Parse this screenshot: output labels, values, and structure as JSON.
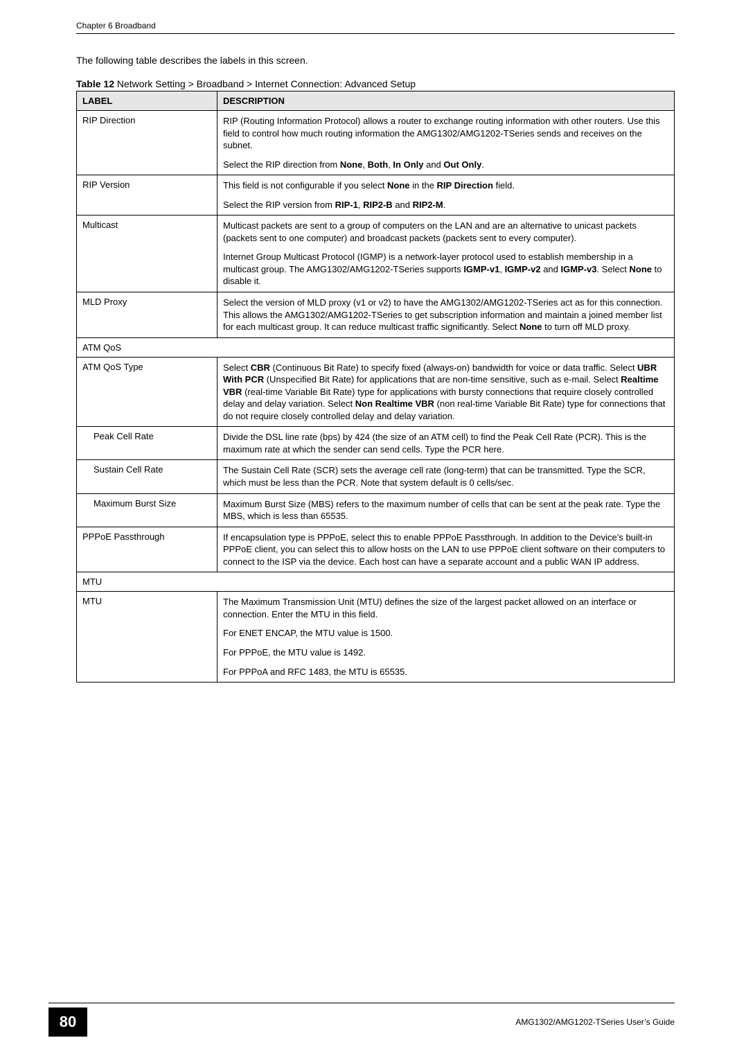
{
  "header": {
    "chapter": "Chapter 6 Broadband"
  },
  "intro": "The following table describes the labels in this screen.",
  "tableCaption": {
    "prefix": "Table 12",
    "title": "   Network Setting > Broadband > Internet Connection: Advanced Setup"
  },
  "columns": {
    "label": "LABEL",
    "description": "DESCRIPTION"
  },
  "rows": {
    "ripDirection": {
      "label": "RIP Direction",
      "p1": "RIP (Routing Information Protocol) allows a router to exchange routing information with other routers. Use this field to control how much routing information the AMG1302/AMG1202-TSeries sends and receives on the subnet.",
      "p2_a": "Select the RIP direction from ",
      "p2_b1": "None",
      "p2_c1": ", ",
      "p2_b2": "Both",
      "p2_c2": ", ",
      "p2_b3": "In Only",
      "p2_c3": " and ",
      "p2_b4": "Out Only",
      "p2_end": "."
    },
    "ripVersion": {
      "label": "RIP Version",
      "p1_a": "This field is not configurable if you select ",
      "p1_b1": "None",
      "p1_c1": " in the ",
      "p1_b2": "RIP Direction",
      "p1_end": " field.",
      "p2_a": "Select the RIP version from ",
      "p2_b1": "RIP-1",
      "p2_c1": ", ",
      "p2_b2": "RIP2-B",
      "p2_c2": " and ",
      "p2_b3": "RIP2-M",
      "p2_end": "."
    },
    "multicast": {
      "label": "Multicast",
      "p1": "Multicast packets are sent to a group of computers on the LAN and are an alternative to unicast packets (packets sent to one computer) and broadcast packets (packets sent to every computer).",
      "p2_a": "Internet Group Multicast Protocol (IGMP) is a network-layer protocol used to establish membership in a multicast group. The AMG1302/AMG1202-TSeries supports ",
      "p2_b1": "IGMP-v1",
      "p2_c1": ", ",
      "p2_b2": "IGMP-v2",
      "p2_c2": " and ",
      "p2_b3": "IGMP-v3",
      "p2_c3": ". Select ",
      "p2_b4": "None",
      "p2_end": " to disable it."
    },
    "mldProxy": {
      "label": "MLD Proxy",
      "p1_a": "Select the version of MLD proxy (v1 or v2) to have the AMG1302/AMG1202-TSeries act as for this connection. This allows the AMG1302/AMG1202-TSeries to get subscription information and maintain a joined member list for each multicast group. It can reduce multicast traffic significantly. Select ",
      "p1_b1": "None",
      "p1_end": " to turn off MLD proxy."
    },
    "atmQos": {
      "label": "ATM QoS"
    },
    "atmQosType": {
      "label": "ATM QoS Type",
      "p1_a": "Select ",
      "p1_b1": "CBR",
      "p1_c1": " (Continuous Bit Rate) to specify fixed (always-on) bandwidth for voice or data traffic. Select ",
      "p1_b2": "UBR With PCR",
      "p1_c2": " (Unspecified Bit Rate) for applications that are non-time sensitive, such as e-mail. Select ",
      "p1_b3": "Realtime VBR",
      "p1_c3": " (real-time Variable Bit Rate) type for applications with bursty connections that require closely controlled delay and delay variation. Select ",
      "p1_b4": "Non Realtime VBR",
      "p1_end": " (non real-time Variable Bit Rate) type for connections that do not require closely controlled delay and delay variation."
    },
    "peakCellRate": {
      "label": "Peak Cell Rate",
      "p1": "Divide the DSL line rate (bps) by 424 (the size of an ATM cell) to find the Peak Cell Rate (PCR). This is the maximum rate at which the sender can send cells. Type the PCR here."
    },
    "sustainCellRate": {
      "label": "Sustain Cell Rate",
      "p1": "The Sustain Cell Rate (SCR) sets the average cell rate (long-term) that can be transmitted. Type the SCR, which must be less than the PCR. Note that system default is 0 cells/sec."
    },
    "maxBurstSize": {
      "label": "Maximum Burst Size",
      "p1": "Maximum Burst Size (MBS) refers to the maximum number of cells that can be sent at the peak rate. Type the MBS, which is less than 65535."
    },
    "pppoePassthrough": {
      "label": "PPPoE Passthrough",
      "p1": "If encapsulation type is PPPoE, select this to enable PPPoE Passthrough. In addition to the Device’s built-in PPPoE client, you can select this to allow hosts on the LAN to use PPPoE client software on their computers to connect to the ISP via the device. Each host can have a separate account and a public WAN IP address."
    },
    "mtuSection": {
      "label": "MTU"
    },
    "mtu": {
      "label": "MTU",
      "p1": "The Maximum Transmission Unit (MTU) defines the size of the largest packet allowed on an interface or connection. Enter the MTU in this field.",
      "p2": "For ENET ENCAP, the MTU value is 1500.",
      "p3": "For PPPoE, the MTU value is 1492.",
      "p4": "For PPPoA and RFC 1483, the MTU is 65535."
    }
  },
  "footer": {
    "pageNumber": "80",
    "guide": "AMG1302/AMG1202-TSeries User’s Guide"
  }
}
